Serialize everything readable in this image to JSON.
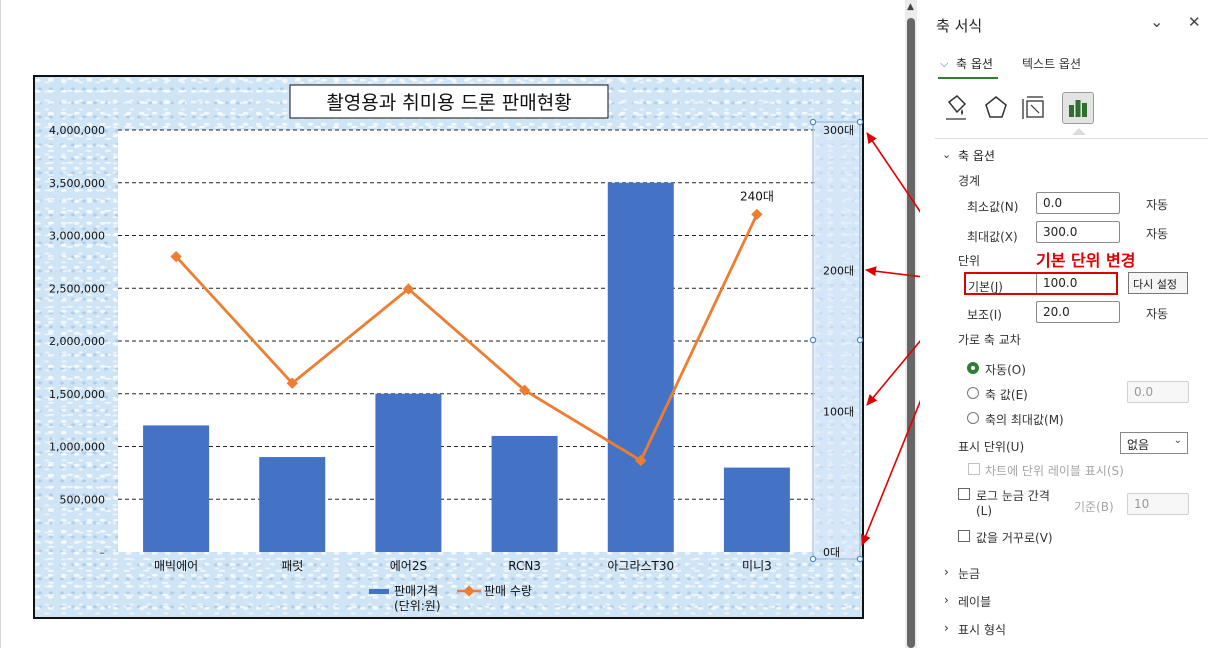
{
  "panel": {
    "title": "축 서식",
    "tabs": [
      "축 옵션",
      "텍스트 옵션"
    ],
    "section": "축 옵션",
    "bounds": {
      "label": "경계",
      "min_label": "최소값(N)",
      "min_value": "0.0",
      "min_status": "자동",
      "max_label": "최대값(X)",
      "max_value": "300.0",
      "max_status": "자동"
    },
    "units": {
      "label": "단위",
      "major_label": "기본(J)",
      "major_value": "100.0",
      "reset_label": "다시 설정",
      "minor_label": "보조(I)",
      "minor_value": "20.0",
      "minor_status": "자동"
    },
    "annotation": "기본 단위 변경",
    "crosses": {
      "label": "가로 축 교차",
      "options": [
        "자동(O)",
        "축 값(E)",
        "축의 최대값(M)"
      ],
      "selected": "자동(O)",
      "axis_value": "0.0"
    },
    "display_units": {
      "label": "표시 단위(U)",
      "value": "없음",
      "show_label": "차트에 단위 레이블 표시(S)"
    },
    "log_scale": {
      "label": "로그 눈금 간격",
      "label2": "(L)",
      "base_label": "기준(B)",
      "base_value": "10"
    },
    "reverse_label": "값을 거꾸로(V)",
    "collapsed_sections": [
      "눈금",
      "레이블",
      "표시 형식"
    ],
    "chevron_icon": "chevron-down-icon",
    "close_icon": "close-icon"
  },
  "chart_data": {
    "type": "bar",
    "title": "촬영용과 취미용 드론 판매현황",
    "categories": [
      "매빅에어",
      "패럿",
      "에어2S",
      "RCN3",
      "아그라스T30",
      "미니3"
    ],
    "series": [
      {
        "name": "판매가격\n(단위:원)",
        "type": "bar",
        "axis": "primary",
        "color": "#4472c4",
        "values": [
          1200000,
          900000,
          1500000,
          1100000,
          3500000,
          800000
        ]
      },
      {
        "name": "판매 수량",
        "type": "line",
        "axis": "secondary",
        "color": "#ed7d31",
        "values": [
          210,
          120,
          187,
          115,
          65,
          240
        ]
      }
    ],
    "primary_axis": {
      "min": 0,
      "max": 4000000,
      "step": 500000,
      "ticks": [
        "–",
        "500,000",
        "1,000,000",
        "1,500,000",
        "2,000,000",
        "2,500,000",
        "3,000,000",
        "3,500,000",
        "4,000,000"
      ]
    },
    "secondary_axis": {
      "min": 0,
      "max": 300,
      "step": 100,
      "ticks": [
        "0대",
        "100대",
        "200대",
        "300대"
      ]
    },
    "data_labels": [
      {
        "series": 1,
        "index": 5,
        "text": "240대"
      }
    ],
    "legend": {
      "position": "bottom",
      "entries": [
        "판매가격\n(단위:원)",
        "판매 수량"
      ]
    },
    "grid": true
  }
}
